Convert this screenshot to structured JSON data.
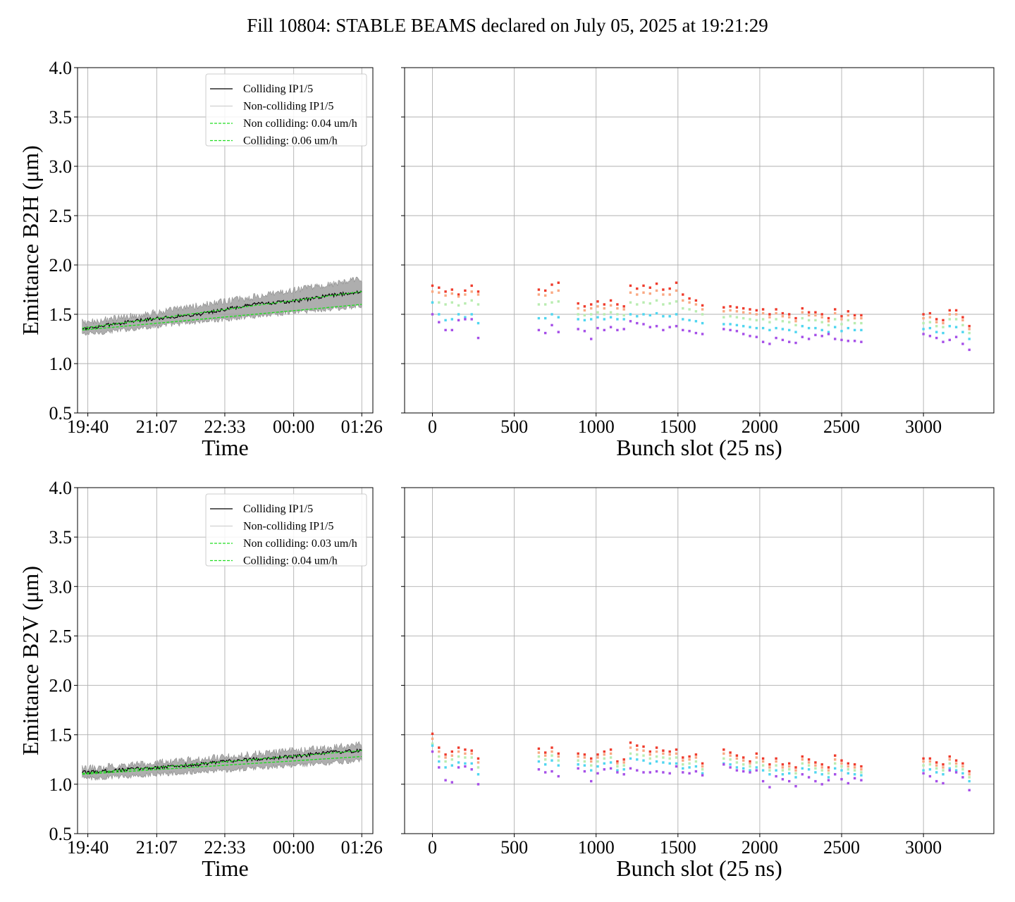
{
  "title": "Fill 10804: STABLE BEAMS declared on July 05, 2025 at 19:21:29",
  "colors": {
    "colliding": "#000000",
    "non_colliding": "#a0a0a0",
    "fit": "#22dd22",
    "grid": "#b0b0b0",
    "scatter_palette": [
      "#ef3b2c",
      "#f9a882",
      "#b9ecb0",
      "#4fd6f0",
      "#a64fe8"
    ]
  },
  "chart_data": [
    {
      "panel": "top-left",
      "type": "line",
      "xlabel": "Time",
      "ylabel": "Emittance B2H (μm)",
      "x_ticks": [
        "19:40",
        "21:07",
        "22:33",
        "00:00",
        "01:26"
      ],
      "x_range": [
        "19:27",
        "01:40"
      ],
      "ylim": [
        0.5,
        4.0
      ],
      "y_ticks": [
        "0.5",
        "1.0",
        "1.5",
        "2.0",
        "2.5",
        "3.0",
        "3.5",
        "4.0"
      ],
      "grid": true,
      "legend_position": "top-right",
      "legend": [
        "Colliding IP1/5",
        "Non-colliding IP1/5",
        "Non colliding: 0.04 um/h",
        "Colliding: 0.06 um/h"
      ],
      "series": [
        {
          "name": "Colliding IP1/5",
          "x": [
            "19:40",
            "20:30",
            "21:07",
            "22:00",
            "22:33",
            "23:20",
            "00:00",
            "00:45",
            "01:26"
          ],
          "values": [
            1.36,
            1.42,
            1.46,
            1.5,
            1.55,
            1.61,
            1.63,
            1.69,
            1.73
          ]
        },
        {
          "name": "Non-colliding IP1/5",
          "x": [
            "19:40",
            "21:07",
            "22:33",
            "00:00",
            "01:26"
          ],
          "values_low": [
            1.3,
            1.38,
            1.45,
            1.52,
            1.58
          ],
          "values_high": [
            1.42,
            1.52,
            1.63,
            1.74,
            1.86
          ]
        },
        {
          "name": "Non colliding: 0.04 um/h",
          "x": [
            "19:33",
            "01:26"
          ],
          "values": [
            1.34,
            1.6
          ]
        },
        {
          "name": "Colliding: 0.06 um/h",
          "x": [
            "19:33",
            "01:26"
          ],
          "values": [
            1.36,
            1.73
          ]
        }
      ]
    },
    {
      "panel": "top-right",
      "type": "scatter",
      "xlabel": "Bunch slot (25 ns)",
      "xlim": [
        -170,
        3430
      ],
      "ylim": [
        0.5,
        4.0
      ],
      "x_ticks": [
        "0",
        "500",
        "1000",
        "1500",
        "2000",
        "2500",
        "3000"
      ],
      "grid": true,
      "x": [
        0,
        40,
        80,
        120,
        160,
        200,
        240,
        280,
        650,
        690,
        730,
        770,
        890,
        930,
        970,
        1010,
        1050,
        1090,
        1130,
        1170,
        1210,
        1250,
        1290,
        1330,
        1370,
        1410,
        1450,
        1490,
        1530,
        1570,
        1610,
        1650,
        1780,
        1820,
        1860,
        1900,
        1940,
        1980,
        2020,
        2060,
        2100,
        2140,
        2180,
        2220,
        2260,
        2300,
        2340,
        2380,
        2420,
        2460,
        2500,
        2540,
        2580,
        2620,
        3000,
        3040,
        3080,
        3120,
        3160,
        3200,
        3240,
        3280
      ],
      "series": [
        {
          "name": "",
          "values": [
            1.79,
            1.77,
            1.73,
            1.75,
            1.7,
            1.74,
            1.79,
            1.73,
            1.75,
            1.74,
            1.8,
            1.82,
            1.61,
            1.58,
            1.6,
            1.63,
            1.6,
            1.64,
            1.6,
            1.58,
            1.79,
            1.76,
            1.79,
            1.77,
            1.81,
            1.75,
            1.76,
            1.82,
            1.7,
            1.66,
            1.64,
            1.59,
            1.57,
            1.58,
            1.57,
            1.56,
            1.55,
            1.54,
            1.55,
            1.5,
            1.55,
            1.51,
            1.5,
            1.46,
            1.56,
            1.52,
            1.52,
            1.5,
            1.46,
            1.55,
            1.48,
            1.53,
            1.49,
            1.49,
            1.5,
            1.51,
            1.45,
            1.44,
            1.54,
            1.54,
            1.47,
            1.38
          ]
        },
        {
          "name": "",
          "values": [
            1.73,
            1.72,
            1.69,
            1.71,
            1.68,
            1.7,
            1.73,
            1.7,
            1.7,
            1.69,
            1.72,
            1.74,
            1.56,
            1.54,
            1.56,
            1.58,
            1.56,
            1.59,
            1.56,
            1.55,
            1.72,
            1.7,
            1.72,
            1.71,
            1.74,
            1.7,
            1.7,
            1.74,
            1.64,
            1.62,
            1.6,
            1.55,
            1.53,
            1.54,
            1.53,
            1.52,
            1.51,
            1.5,
            1.51,
            1.47,
            1.51,
            1.48,
            1.47,
            1.43,
            1.52,
            1.49,
            1.49,
            1.47,
            1.43,
            1.51,
            1.45,
            1.49,
            1.46,
            1.46,
            1.46,
            1.47,
            1.42,
            1.41,
            1.5,
            1.5,
            1.44,
            1.35
          ]
        },
        {
          "name": "",
          "values": [
            1.62,
            1.62,
            1.6,
            1.62,
            1.59,
            1.61,
            1.64,
            1.6,
            1.6,
            1.6,
            1.62,
            1.63,
            1.5,
            1.49,
            1.5,
            1.52,
            1.5,
            1.52,
            1.5,
            1.49,
            1.62,
            1.6,
            1.62,
            1.61,
            1.64,
            1.6,
            1.61,
            1.63,
            1.56,
            1.55,
            1.53,
            1.5,
            1.47,
            1.48,
            1.47,
            1.46,
            1.45,
            1.44,
            1.45,
            1.42,
            1.45,
            1.43,
            1.42,
            1.39,
            1.46,
            1.44,
            1.44,
            1.42,
            1.39,
            1.45,
            1.4,
            1.44,
            1.41,
            1.41,
            1.41,
            1.42,
            1.38,
            1.37,
            1.45,
            1.45,
            1.39,
            1.31
          ]
        },
        {
          "name": "",
          "values": [
            1.62,
            1.5,
            1.44,
            1.45,
            1.5,
            1.47,
            1.5,
            1.41,
            1.46,
            1.46,
            1.5,
            1.47,
            1.45,
            1.44,
            1.45,
            1.47,
            1.45,
            1.47,
            1.45,
            1.45,
            1.5,
            1.48,
            1.5,
            1.49,
            1.51,
            1.48,
            1.48,
            1.5,
            1.45,
            1.44,
            1.43,
            1.41,
            1.4,
            1.4,
            1.39,
            1.38,
            1.37,
            1.36,
            1.36,
            1.34,
            1.36,
            1.35,
            1.34,
            1.32,
            1.38,
            1.36,
            1.36,
            1.34,
            1.32,
            1.37,
            1.33,
            1.36,
            1.34,
            1.34,
            1.35,
            1.36,
            1.32,
            1.31,
            1.38,
            1.37,
            1.32,
            1.25
          ]
        },
        {
          "name": "",
          "values": [
            1.5,
            1.42,
            1.34,
            1.34,
            1.44,
            1.45,
            1.45,
            1.26,
            1.34,
            1.31,
            1.39,
            1.32,
            1.35,
            1.33,
            1.25,
            1.36,
            1.34,
            1.37,
            1.34,
            1.35,
            1.43,
            1.41,
            1.4,
            1.37,
            1.38,
            1.34,
            1.37,
            1.38,
            1.34,
            1.33,
            1.31,
            1.3,
            1.35,
            1.34,
            1.33,
            1.3,
            1.28,
            1.27,
            1.22,
            1.2,
            1.26,
            1.24,
            1.22,
            1.21,
            1.27,
            1.25,
            1.29,
            1.28,
            1.3,
            1.25,
            1.24,
            1.23,
            1.23,
            1.22,
            1.3,
            1.28,
            1.26,
            1.22,
            1.24,
            1.27,
            1.2,
            1.14
          ]
        }
      ]
    },
    {
      "panel": "bottom-left",
      "type": "line",
      "xlabel": "Time",
      "ylabel": "Emittance B2V (μm)",
      "x_ticks": [
        "19:40",
        "21:07",
        "22:33",
        "00:00",
        "01:26"
      ],
      "x_range": [
        "19:27",
        "01:40"
      ],
      "ylim": [
        0.5,
        4.0
      ],
      "y_ticks": [
        "0.5",
        "1.0",
        "1.5",
        "2.0",
        "2.5",
        "3.0",
        "3.5",
        "4.0"
      ],
      "grid": true,
      "legend_position": "top-right",
      "legend": [
        "Colliding IP1/5",
        "Non-colliding IP1/5",
        "Non colliding: 0.03 um/h",
        "Colliding: 0.04 um/h"
      ],
      "series": [
        {
          "name": "Colliding IP1/5",
          "x": [
            "19:40",
            "20:30",
            "21:07",
            "22:00",
            "22:33",
            "23:20",
            "00:00",
            "00:45",
            "01:26"
          ],
          "values": [
            1.12,
            1.15,
            1.17,
            1.2,
            1.23,
            1.26,
            1.28,
            1.32,
            1.34
          ]
        },
        {
          "name": "Non-colliding IP1/5",
          "x": [
            "19:40",
            "21:07",
            "22:33",
            "00:00",
            "01:26"
          ],
          "values_low": [
            1.06,
            1.1,
            1.14,
            1.19,
            1.24
          ],
          "values_high": [
            1.16,
            1.22,
            1.28,
            1.34,
            1.4
          ]
        },
        {
          "name": "Non colliding: 0.03 um/h",
          "x": [
            "19:33",
            "01:26"
          ],
          "values": [
            1.1,
            1.28
          ]
        },
        {
          "name": "Colliding: 0.04 um/h",
          "x": [
            "19:33",
            "01:26"
          ],
          "values": [
            1.11,
            1.34
          ]
        }
      ]
    },
    {
      "panel": "bottom-right",
      "type": "scatter",
      "xlabel": "Bunch slot (25 ns)",
      "xlim": [
        -170,
        3430
      ],
      "ylim": [
        0.5,
        4.0
      ],
      "x_ticks": [
        "0",
        "500",
        "1000",
        "1500",
        "2000",
        "2500",
        "3000"
      ],
      "grid": true,
      "x": [
        0,
        40,
        80,
        120,
        160,
        200,
        240,
        280,
        650,
        690,
        730,
        770,
        890,
        930,
        970,
        1010,
        1050,
        1090,
        1130,
        1170,
        1210,
        1250,
        1290,
        1330,
        1370,
        1410,
        1450,
        1490,
        1530,
        1570,
        1610,
        1650,
        1780,
        1820,
        1860,
        1900,
        1940,
        1980,
        2020,
        2060,
        2100,
        2140,
        2180,
        2220,
        2260,
        2300,
        2340,
        2380,
        2420,
        2460,
        2500,
        2540,
        2580,
        2620,
        3000,
        3040,
        3080,
        3120,
        3160,
        3200,
        3240,
        3280
      ],
      "series": [
        {
          "name": "",
          "values": [
            1.51,
            1.37,
            1.3,
            1.33,
            1.37,
            1.35,
            1.34,
            1.26,
            1.36,
            1.32,
            1.37,
            1.31,
            1.31,
            1.3,
            1.26,
            1.3,
            1.33,
            1.35,
            1.23,
            1.25,
            1.42,
            1.39,
            1.38,
            1.33,
            1.37,
            1.34,
            1.33,
            1.35,
            1.27,
            1.28,
            1.3,
            1.21,
            1.35,
            1.32,
            1.29,
            1.27,
            1.23,
            1.31,
            1.26,
            1.2,
            1.26,
            1.2,
            1.21,
            1.17,
            1.28,
            1.25,
            1.22,
            1.2,
            1.17,
            1.29,
            1.24,
            1.21,
            1.2,
            1.18,
            1.26,
            1.26,
            1.22,
            1.2,
            1.28,
            1.24,
            1.21,
            1.13
          ]
        },
        {
          "name": "",
          "values": [
            1.46,
            1.33,
            1.27,
            1.29,
            1.33,
            1.31,
            1.31,
            1.22,
            1.32,
            1.29,
            1.33,
            1.28,
            1.28,
            1.27,
            1.23,
            1.27,
            1.3,
            1.31,
            1.21,
            1.22,
            1.37,
            1.35,
            1.34,
            1.3,
            1.33,
            1.31,
            1.3,
            1.31,
            1.24,
            1.25,
            1.27,
            1.18,
            1.31,
            1.29,
            1.26,
            1.24,
            1.21,
            1.27,
            1.23,
            1.17,
            1.23,
            1.17,
            1.18,
            1.14,
            1.25,
            1.22,
            1.19,
            1.17,
            1.14,
            1.25,
            1.21,
            1.18,
            1.17,
            1.15,
            1.23,
            1.23,
            1.19,
            1.17,
            1.25,
            1.21,
            1.18,
            1.1
          ]
        },
        {
          "name": "",
          "values": [
            1.41,
            1.28,
            1.23,
            1.25,
            1.28,
            1.27,
            1.27,
            1.17,
            1.28,
            1.25,
            1.29,
            1.24,
            1.24,
            1.23,
            1.19,
            1.23,
            1.26,
            1.27,
            1.18,
            1.19,
            1.31,
            1.3,
            1.29,
            1.26,
            1.28,
            1.27,
            1.26,
            1.27,
            1.2,
            1.21,
            1.23,
            1.15,
            1.26,
            1.25,
            1.22,
            1.2,
            1.18,
            1.22,
            1.19,
            1.14,
            1.19,
            1.14,
            1.15,
            1.11,
            1.21,
            1.19,
            1.16,
            1.14,
            1.11,
            1.21,
            1.18,
            1.15,
            1.14,
            1.12,
            1.19,
            1.2,
            1.16,
            1.14,
            1.21,
            1.18,
            1.15,
            1.07
          ]
        },
        {
          "name": "",
          "values": [
            1.39,
            1.23,
            1.17,
            1.19,
            1.22,
            1.21,
            1.21,
            1.1,
            1.23,
            1.2,
            1.24,
            1.19,
            1.2,
            1.19,
            1.14,
            1.18,
            1.21,
            1.22,
            1.14,
            1.15,
            1.26,
            1.25,
            1.24,
            1.21,
            1.23,
            1.22,
            1.21,
            1.21,
            1.16,
            1.17,
            1.18,
            1.11,
            1.21,
            1.2,
            1.17,
            1.16,
            1.14,
            1.17,
            1.14,
            1.1,
            1.14,
            1.1,
            1.11,
            1.07,
            1.16,
            1.15,
            1.12,
            1.1,
            1.07,
            1.16,
            1.14,
            1.11,
            1.1,
            1.09,
            1.14,
            1.15,
            1.12,
            1.1,
            1.16,
            1.14,
            1.11,
            1.03
          ]
        },
        {
          "name": "",
          "values": [
            1.33,
            1.17,
            1.04,
            1.02,
            1.17,
            1.18,
            1.15,
            1.0,
            1.15,
            1.12,
            1.13,
            1.08,
            1.16,
            1.13,
            1.03,
            1.11,
            1.15,
            1.16,
            1.12,
            1.1,
            1.16,
            1.14,
            1.12,
            1.12,
            1.13,
            1.12,
            1.11,
            1.18,
            1.12,
            1.11,
            1.13,
            1.09,
            1.2,
            1.17,
            1.14,
            1.13,
            1.12,
            1.14,
            1.03,
            0.97,
            1.08,
            1.05,
            1.03,
            0.98,
            1.1,
            1.07,
            1.03,
            1.0,
            1.04,
            1.1,
            1.05,
            1.01,
            1.06,
            1.04,
            1.11,
            1.08,
            1.03,
            1.01,
            1.14,
            1.12,
            1.07,
            0.94
          ]
        }
      ]
    }
  ]
}
